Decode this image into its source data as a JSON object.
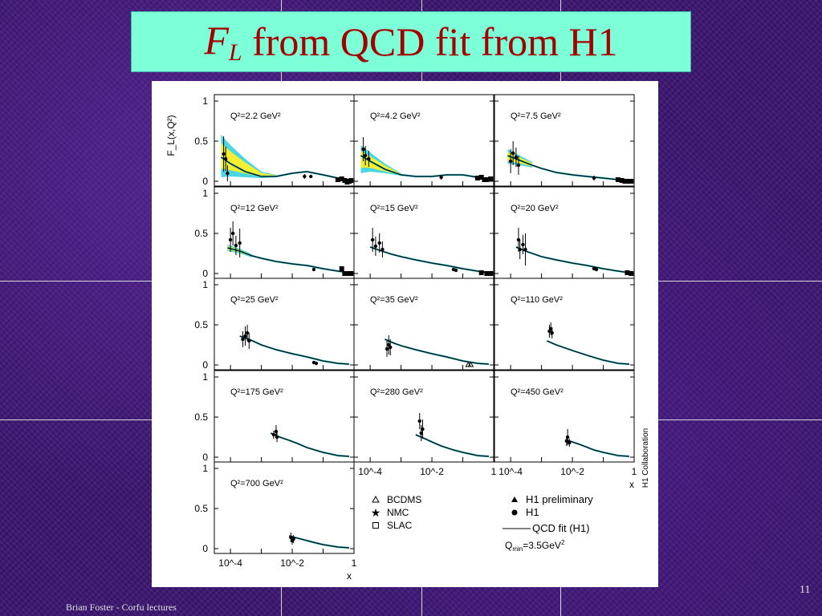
{
  "slide": {
    "title_symbol": "F",
    "title_subscript": "L",
    "title_rest": " from QCD fit from H1",
    "footer": "Brian Foster - Corfu lectures",
    "page_number": "11"
  },
  "chart_data": {
    "type": "scatter",
    "ylabel": "F_L(x,Q²)",
    "xlabel": "x",
    "x_scale": "log",
    "xlim": [
      3e-05,
      1
    ],
    "ylim": [
      0,
      1
    ],
    "x_tick_labels": [
      "10^-4",
      "10^-2",
      "1"
    ],
    "y_tick_labels": [
      "0",
      "0.5",
      "1"
    ],
    "side_label": "H1 Collaboration",
    "legend": [
      {
        "symbol": "open-triangle",
        "label": "BCDMS"
      },
      {
        "symbol": "star",
        "label": "NMC"
      },
      {
        "symbol": "open-square",
        "label": "SLAC"
      },
      {
        "symbol": "filled-triangle",
        "label": "H1 preliminary"
      },
      {
        "symbol": "filled-circle",
        "label": "H1"
      },
      {
        "symbol": "line",
        "label": "QCD fit (H1)"
      }
    ],
    "fit_note_prefix": "Q",
    "fit_note_sub": "min",
    "fit_note_rest": "=3.5GeV",
    "panels": [
      {
        "label": "Q²=2.2 GeV²",
        "fit": {
          "x": [
            5e-05,
            0.0001,
            0.0003,
            0.001,
            0.003,
            0.01,
            0.03,
            0.1,
            0.3,
            0.7
          ],
          "y": [
            0.3,
            0.22,
            0.12,
            0.06,
            0.06,
            0.1,
            0.12,
            0.08,
            0.04,
            0.01
          ]
        },
        "band": {
          "x": [
            5e-05,
            0.0001,
            0.0003,
            0.001,
            0.003
          ],
          "lo": [
            0.05,
            0.06,
            0.05,
            0.04,
            0.05
          ],
          "hi": [
            0.58,
            0.45,
            0.28,
            0.12,
            0.08
          ]
        },
        "points": [
          {
            "x": 6e-05,
            "y": 0.34,
            "e": 0.22
          },
          {
            "x": 7e-05,
            "y": 0.28,
            "e": 0.15
          },
          {
            "x": 8e-05,
            "y": 0.1,
            "e": 0.1
          },
          {
            "x": 0.025,
            "y": 0.06,
            "e": 0.03
          },
          {
            "x": 0.04,
            "y": 0.06,
            "e": 0.02
          }
        ],
        "squares": [
          {
            "x": 0.3,
            "y": 0.02
          },
          {
            "x": 0.4,
            "y": 0.03
          },
          {
            "x": 0.5,
            "y": 0.01
          },
          {
            "x": 0.6,
            "y": -0.01
          },
          {
            "x": 0.7,
            "y": 0.0
          },
          {
            "x": 0.8,
            "y": 0.01
          }
        ]
      },
      {
        "label": "Q²=4.2 GeV²",
        "fit": {
          "x": [
            5e-05,
            0.0001,
            0.0003,
            0.001,
            0.003,
            0.01,
            0.03,
            0.1,
            0.3,
            0.7
          ],
          "y": [
            0.32,
            0.25,
            0.15,
            0.08,
            0.06,
            0.06,
            0.08,
            0.08,
            0.05,
            0.01
          ]
        },
        "band": {
          "x": [
            5e-05,
            0.0001,
            0.0003,
            0.001
          ],
          "lo": [
            0.1,
            0.12,
            0.1,
            0.07
          ],
          "hi": [
            0.45,
            0.36,
            0.22,
            0.1
          ]
        },
        "points": [
          {
            "x": 6e-05,
            "y": 0.4,
            "e": 0.15
          },
          {
            "x": 7e-05,
            "y": 0.32,
            "e": 0.12
          },
          {
            "x": 9e-05,
            "y": 0.28,
            "e": 0.1
          },
          {
            "x": 0.02,
            "y": 0.05,
            "e": 0.03
          }
        ],
        "squares": [
          {
            "x": 0.3,
            "y": 0.04
          },
          {
            "x": 0.4,
            "y": 0.05
          },
          {
            "x": 0.5,
            "y": 0.02
          },
          {
            "x": 0.6,
            "y": 0.02
          },
          {
            "x": 0.8,
            "y": 0.03
          }
        ]
      },
      {
        "label": "Q²=7.5 GeV²",
        "fit": {
          "x": [
            8e-05,
            0.0002,
            0.0005,
            0.001,
            0.003,
            0.01,
            0.03,
            0.1,
            0.3,
            0.7
          ],
          "y": [
            0.32,
            0.26,
            0.2,
            0.16,
            0.11,
            0.08,
            0.06,
            0.04,
            0.02,
            0.01
          ]
        },
        "band": {
          "x": [
            8e-05,
            0.0002,
            0.0005
          ],
          "lo": [
            0.22,
            0.2,
            0.17
          ],
          "hi": [
            0.4,
            0.32,
            0.24
          ]
        },
        "points": [
          {
            "x": 0.0001,
            "y": 0.25,
            "e": 0.15
          },
          {
            "x": 0.00012,
            "y": 0.35,
            "e": 0.15
          },
          {
            "x": 0.00015,
            "y": 0.3,
            "e": 0.12
          },
          {
            "x": 0.00018,
            "y": 0.2,
            "e": 0.12
          },
          {
            "x": 0.05,
            "y": 0.04,
            "e": 0.03
          }
        ],
        "squares": [
          {
            "x": 0.3,
            "y": 0.02
          },
          {
            "x": 0.4,
            "y": 0.01
          },
          {
            "x": 0.5,
            "y": 0.0
          },
          {
            "x": 0.6,
            "y": 0.0
          },
          {
            "x": 0.8,
            "y": 0.0
          }
        ]
      },
      {
        "label": "Q²=12 GeV²",
        "fit": {
          "x": [
            8e-05,
            0.0002,
            0.0005,
            0.001,
            0.003,
            0.01,
            0.03,
            0.1,
            0.3,
            0.7
          ],
          "y": [
            0.32,
            0.28,
            0.22,
            0.19,
            0.15,
            0.12,
            0.1,
            0.06,
            0.03,
            0.01
          ]
        },
        "band": {
          "x": [
            8e-05,
            0.0002,
            0.0005
          ],
          "lo": [
            0.28,
            0.25,
            0.2
          ],
          "hi": [
            0.36,
            0.31,
            0.24
          ]
        },
        "points": [
          {
            "x": 0.0001,
            "y": 0.42,
            "e": 0.15
          },
          {
            "x": 0.00012,
            "y": 0.5,
            "e": 0.15
          },
          {
            "x": 0.00015,
            "y": 0.35,
            "e": 0.12
          },
          {
            "x": 0.0002,
            "y": 0.38,
            "e": 0.18
          },
          {
            "x": 0.05,
            "y": 0.05,
            "e": 0.02
          }
        ],
        "squares": [
          {
            "x": 0.4,
            "y": 0.06
          },
          {
            "x": 0.5,
            "y": 0.0
          },
          {
            "x": 0.6,
            "y": 0.0
          },
          {
            "x": 0.8,
            "y": 0.0
          }
        ]
      },
      {
        "label": "Q²=15 GeV²",
        "fit": {
          "x": [
            0.0001,
            0.0002,
            0.0005,
            0.001,
            0.003,
            0.01,
            0.03,
            0.1,
            0.3,
            0.7
          ],
          "y": [
            0.33,
            0.29,
            0.24,
            0.21,
            0.17,
            0.13,
            0.1,
            0.06,
            0.03,
            0.01
          ]
        },
        "points": [
          {
            "x": 0.00012,
            "y": 0.42,
            "e": 0.15
          },
          {
            "x": 0.00015,
            "y": 0.34,
            "e": 0.12
          },
          {
            "x": 0.0002,
            "y": 0.38,
            "e": 0.12
          },
          {
            "x": 0.00025,
            "y": 0.3,
            "e": 0.1
          },
          {
            "x": 0.05,
            "y": 0.05,
            "e": 0.02
          },
          {
            "x": 0.06,
            "y": 0.04,
            "e": 0.02
          }
        ],
        "squares": [
          {
            "x": 0.4,
            "y": 0.01
          },
          {
            "x": 0.6,
            "y": 0.0
          },
          {
            "x": 0.8,
            "y": 0.0
          }
        ]
      },
      {
        "label": "Q²=20 GeV²",
        "fit": {
          "x": [
            0.00015,
            0.0003,
            0.0006,
            0.001,
            0.003,
            0.01,
            0.03,
            0.1,
            0.3,
            0.7
          ],
          "y": [
            0.33,
            0.28,
            0.24,
            0.21,
            0.17,
            0.13,
            0.1,
            0.06,
            0.03,
            0.01
          ]
        },
        "points": [
          {
            "x": 0.00018,
            "y": 0.42,
            "e": 0.15
          },
          {
            "x": 0.0002,
            "y": 0.3,
            "e": 0.12
          },
          {
            "x": 0.00025,
            "y": 0.36,
            "e": 0.12
          },
          {
            "x": 0.0003,
            "y": 0.3,
            "e": 0.2
          },
          {
            "x": 0.05,
            "y": 0.06,
            "e": 0.02
          },
          {
            "x": 0.06,
            "y": 0.05,
            "e": 0.02
          }
        ],
        "squares": [
          {
            "x": 0.6,
            "y": 0.01
          },
          {
            "x": 0.8,
            "y": 0.0
          }
        ]
      },
      {
        "label": "Q²=25 GeV²",
        "fit": {
          "x": [
            0.0002,
            0.0004,
            0.001,
            0.003,
            0.01,
            0.03,
            0.1,
            0.3,
            0.7
          ],
          "y": [
            0.36,
            0.32,
            0.25,
            0.19,
            0.14,
            0.1,
            0.05,
            0.02,
            0.01
          ]
        },
        "points": [
          {
            "x": 0.00025,
            "y": 0.32,
            "e": 0.1
          },
          {
            "x": 0.0003,
            "y": 0.36,
            "e": 0.12
          },
          {
            "x": 0.00035,
            "y": 0.4,
            "e": 0.1
          },
          {
            "x": 0.0004,
            "y": 0.3,
            "e": 0.1
          },
          {
            "x": 0.05,
            "y": 0.03,
            "e": 0.02
          },
          {
            "x": 0.06,
            "y": 0.02,
            "e": 0.02
          }
        ],
        "squares": []
      },
      {
        "label": "Q²=35 GeV²",
        "fit": {
          "x": [
            0.0003,
            0.0006,
            0.001,
            0.003,
            0.01,
            0.03,
            0.1,
            0.3,
            0.7
          ],
          "y": [
            0.32,
            0.27,
            0.24,
            0.19,
            0.14,
            0.1,
            0.05,
            0.02,
            0.01
          ]
        },
        "points": [
          {
            "x": 0.00035,
            "y": 0.2,
            "e": 0.1
          },
          {
            "x": 0.0004,
            "y": 0.25,
            "e": 0.12
          },
          {
            "x": 0.00045,
            "y": 0.22,
            "e": 0.1
          }
        ],
        "triangles": [
          {
            "x": 0.15,
            "y": 0.0
          },
          {
            "x": 0.18,
            "y": 0.0
          }
        ],
        "squares": []
      },
      {
        "label": "Q²=110 GeV²",
        "fit": {
          "x": [
            0.0015,
            0.003,
            0.006,
            0.01,
            0.03,
            0.1,
            0.3,
            0.7
          ],
          "y": [
            0.3,
            0.25,
            0.21,
            0.18,
            0.12,
            0.06,
            0.02,
            0.01
          ]
        },
        "points": [
          {
            "x": 0.0018,
            "y": 0.42,
            "e": 0.08
          },
          {
            "x": 0.002,
            "y": 0.45,
            "e": 0.08
          },
          {
            "x": 0.0022,
            "y": 0.4,
            "e": 0.07
          }
        ],
        "squares": []
      },
      {
        "label": "Q²=175 GeV²",
        "fit": {
          "x": [
            0.002,
            0.004,
            0.008,
            0.015,
            0.03,
            0.1,
            0.3,
            0.7
          ],
          "y": [
            0.3,
            0.25,
            0.21,
            0.17,
            0.12,
            0.06,
            0.02,
            0.01
          ]
        },
        "points": [
          {
            "x": 0.0025,
            "y": 0.28,
            "e": 0.05
          },
          {
            "x": 0.003,
            "y": 0.32,
            "e": 0.08
          },
          {
            "x": 0.0032,
            "y": 0.25,
            "e": 0.06
          }
        ],
        "squares": []
      },
      {
        "label": "Q²=280 GeV²",
        "fit": {
          "x": [
            0.003,
            0.006,
            0.01,
            0.02,
            0.05,
            0.1,
            0.3,
            0.7
          ],
          "y": [
            0.28,
            0.23,
            0.19,
            0.14,
            0.09,
            0.06,
            0.02,
            0.01
          ]
        },
        "points": [
          {
            "x": 0.004,
            "y": 0.45,
            "e": 0.1
          },
          {
            "x": 0.005,
            "y": 0.35,
            "e": 0.12
          },
          {
            "x": 0.0045,
            "y": 0.3,
            "e": 0.1
          }
        ],
        "squares": []
      },
      {
        "label": "Q²=450 GeV²",
        "fit": {
          "x": [
            0.006,
            0.01,
            0.02,
            0.05,
            0.1,
            0.3,
            0.7
          ],
          "y": [
            0.22,
            0.19,
            0.15,
            0.09,
            0.06,
            0.02,
            0.01
          ]
        },
        "points": [
          {
            "x": 0.0065,
            "y": 0.2,
            "e": 0.06
          },
          {
            "x": 0.007,
            "y": 0.25,
            "e": 0.1
          },
          {
            "x": 0.008,
            "y": 0.18,
            "e": 0.05
          }
        ],
        "squares": []
      },
      {
        "label": "Q²=700 GeV²",
        "fit": {
          "x": [
            0.008,
            0.015,
            0.03,
            0.06,
            0.1,
            0.3,
            0.7
          ],
          "y": [
            0.16,
            0.13,
            0.1,
            0.07,
            0.05,
            0.02,
            0.01
          ]
        },
        "points": [
          {
            "x": 0.009,
            "y": 0.14,
            "e": 0.06
          },
          {
            "x": 0.01,
            "y": 0.1,
            "e": 0.05
          },
          {
            "x": 0.011,
            "y": 0.12,
            "e": 0.05
          }
        ],
        "squares": []
      }
    ]
  }
}
